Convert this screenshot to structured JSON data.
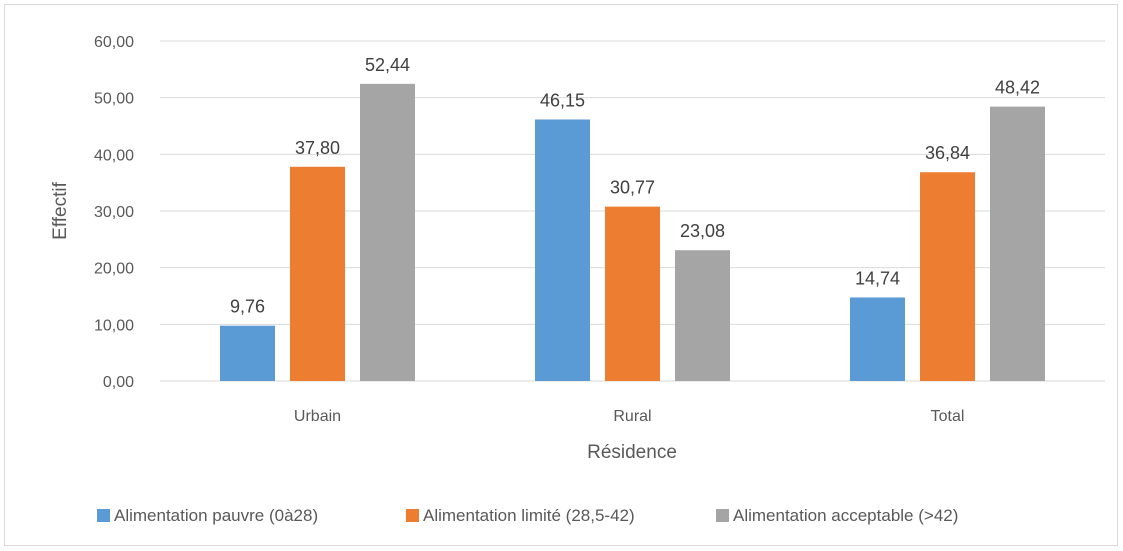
{
  "chart_data": {
    "type": "bar",
    "title": "",
    "xlabel": "Résidence",
    "ylabel": "Effectif",
    "categories": [
      "Urbain",
      "Rural",
      "Total"
    ],
    "series": [
      {
        "name": "Alimentation pauvre (0à28)",
        "color": "#5b9bd5",
        "values": [
          9.76,
          46.15,
          14.74
        ],
        "labels": [
          "9,76",
          "46,15",
          "14,74"
        ]
      },
      {
        "name": "Alimentation limité (28,5-42)",
        "color": "#ed7d31",
        "values": [
          37.8,
          30.77,
          36.84
        ],
        "labels": [
          "37,80",
          "30,77",
          "36,84"
        ]
      },
      {
        "name": "Alimentation acceptable (>42)",
        "color": "#a5a5a5",
        "values": [
          52.44,
          23.08,
          48.42
        ],
        "labels": [
          "52,44",
          "23,08",
          "48,42"
        ]
      }
    ],
    "ylim": [
      0,
      60
    ],
    "yticks": [
      0,
      10,
      20,
      30,
      40,
      50,
      60
    ],
    "ytick_labels": [
      "0,00",
      "10,00",
      "20,00",
      "30,00",
      "40,00",
      "50,00",
      "60,00"
    ],
    "grid": true,
    "legend_position": "bottom"
  }
}
